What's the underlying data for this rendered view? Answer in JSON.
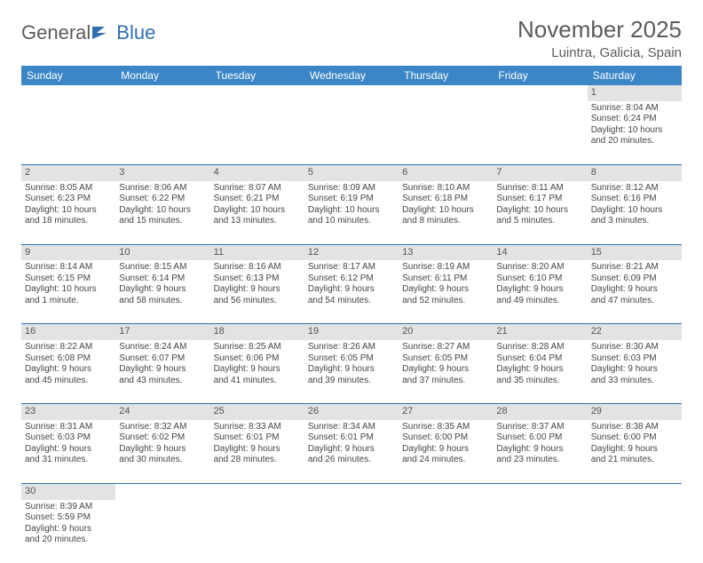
{
  "brand": {
    "part1": "General",
    "part2": "Blue"
  },
  "title": "November 2025",
  "location": "Luintra, Galicia, Spain",
  "colors": {
    "header_bg": "#3b86c6",
    "header_text": "#ffffff",
    "daynum_bg": "#e3e3e3",
    "row_border": "#2f6fb0",
    "text": "#454545",
    "title_color": "#5b5b5b",
    "logo_gray": "#5b5b5b",
    "logo_blue": "#2f6fb0"
  },
  "weekdays": [
    "Sunday",
    "Monday",
    "Tuesday",
    "Wednesday",
    "Thursday",
    "Friday",
    "Saturday"
  ],
  "weeks": [
    [
      null,
      null,
      null,
      null,
      null,
      null,
      {
        "n": "1",
        "sr": "Sunrise: 8:04 AM",
        "ss": "Sunset: 6:24 PM",
        "d1": "Daylight: 10 hours",
        "d2": "and 20 minutes."
      }
    ],
    [
      {
        "n": "2",
        "sr": "Sunrise: 8:05 AM",
        "ss": "Sunset: 6:23 PM",
        "d1": "Daylight: 10 hours",
        "d2": "and 18 minutes."
      },
      {
        "n": "3",
        "sr": "Sunrise: 8:06 AM",
        "ss": "Sunset: 6:22 PM",
        "d1": "Daylight: 10 hours",
        "d2": "and 15 minutes."
      },
      {
        "n": "4",
        "sr": "Sunrise: 8:07 AM",
        "ss": "Sunset: 6:21 PM",
        "d1": "Daylight: 10 hours",
        "d2": "and 13 minutes."
      },
      {
        "n": "5",
        "sr": "Sunrise: 8:09 AM",
        "ss": "Sunset: 6:19 PM",
        "d1": "Daylight: 10 hours",
        "d2": "and 10 minutes."
      },
      {
        "n": "6",
        "sr": "Sunrise: 8:10 AM",
        "ss": "Sunset: 6:18 PM",
        "d1": "Daylight: 10 hours",
        "d2": "and 8 minutes."
      },
      {
        "n": "7",
        "sr": "Sunrise: 8:11 AM",
        "ss": "Sunset: 6:17 PM",
        "d1": "Daylight: 10 hours",
        "d2": "and 5 minutes."
      },
      {
        "n": "8",
        "sr": "Sunrise: 8:12 AM",
        "ss": "Sunset: 6:16 PM",
        "d1": "Daylight: 10 hours",
        "d2": "and 3 minutes."
      }
    ],
    [
      {
        "n": "9",
        "sr": "Sunrise: 8:14 AM",
        "ss": "Sunset: 6:15 PM",
        "d1": "Daylight: 10 hours",
        "d2": "and 1 minute."
      },
      {
        "n": "10",
        "sr": "Sunrise: 8:15 AM",
        "ss": "Sunset: 6:14 PM",
        "d1": "Daylight: 9 hours",
        "d2": "and 58 minutes."
      },
      {
        "n": "11",
        "sr": "Sunrise: 8:16 AM",
        "ss": "Sunset: 6:13 PM",
        "d1": "Daylight: 9 hours",
        "d2": "and 56 minutes."
      },
      {
        "n": "12",
        "sr": "Sunrise: 8:17 AM",
        "ss": "Sunset: 6:12 PM",
        "d1": "Daylight: 9 hours",
        "d2": "and 54 minutes."
      },
      {
        "n": "13",
        "sr": "Sunrise: 8:19 AM",
        "ss": "Sunset: 6:11 PM",
        "d1": "Daylight: 9 hours",
        "d2": "and 52 minutes."
      },
      {
        "n": "14",
        "sr": "Sunrise: 8:20 AM",
        "ss": "Sunset: 6:10 PM",
        "d1": "Daylight: 9 hours",
        "d2": "and 49 minutes."
      },
      {
        "n": "15",
        "sr": "Sunrise: 8:21 AM",
        "ss": "Sunset: 6:09 PM",
        "d1": "Daylight: 9 hours",
        "d2": "and 47 minutes."
      }
    ],
    [
      {
        "n": "16",
        "sr": "Sunrise: 8:22 AM",
        "ss": "Sunset: 6:08 PM",
        "d1": "Daylight: 9 hours",
        "d2": "and 45 minutes."
      },
      {
        "n": "17",
        "sr": "Sunrise: 8:24 AM",
        "ss": "Sunset: 6:07 PM",
        "d1": "Daylight: 9 hours",
        "d2": "and 43 minutes."
      },
      {
        "n": "18",
        "sr": "Sunrise: 8:25 AM",
        "ss": "Sunset: 6:06 PM",
        "d1": "Daylight: 9 hours",
        "d2": "and 41 minutes."
      },
      {
        "n": "19",
        "sr": "Sunrise: 8:26 AM",
        "ss": "Sunset: 6:05 PM",
        "d1": "Daylight: 9 hours",
        "d2": "and 39 minutes."
      },
      {
        "n": "20",
        "sr": "Sunrise: 8:27 AM",
        "ss": "Sunset: 6:05 PM",
        "d1": "Daylight: 9 hours",
        "d2": "and 37 minutes."
      },
      {
        "n": "21",
        "sr": "Sunrise: 8:28 AM",
        "ss": "Sunset: 6:04 PM",
        "d1": "Daylight: 9 hours",
        "d2": "and 35 minutes."
      },
      {
        "n": "22",
        "sr": "Sunrise: 8:30 AM",
        "ss": "Sunset: 6:03 PM",
        "d1": "Daylight: 9 hours",
        "d2": "and 33 minutes."
      }
    ],
    [
      {
        "n": "23",
        "sr": "Sunrise: 8:31 AM",
        "ss": "Sunset: 6:03 PM",
        "d1": "Daylight: 9 hours",
        "d2": "and 31 minutes."
      },
      {
        "n": "24",
        "sr": "Sunrise: 8:32 AM",
        "ss": "Sunset: 6:02 PM",
        "d1": "Daylight: 9 hours",
        "d2": "and 30 minutes."
      },
      {
        "n": "25",
        "sr": "Sunrise: 8:33 AM",
        "ss": "Sunset: 6:01 PM",
        "d1": "Daylight: 9 hours",
        "d2": "and 28 minutes."
      },
      {
        "n": "26",
        "sr": "Sunrise: 8:34 AM",
        "ss": "Sunset: 6:01 PM",
        "d1": "Daylight: 9 hours",
        "d2": "and 26 minutes."
      },
      {
        "n": "27",
        "sr": "Sunrise: 8:35 AM",
        "ss": "Sunset: 6:00 PM",
        "d1": "Daylight: 9 hours",
        "d2": "and 24 minutes."
      },
      {
        "n": "28",
        "sr": "Sunrise: 8:37 AM",
        "ss": "Sunset: 6:00 PM",
        "d1": "Daylight: 9 hours",
        "d2": "and 23 minutes."
      },
      {
        "n": "29",
        "sr": "Sunrise: 8:38 AM",
        "ss": "Sunset: 6:00 PM",
        "d1": "Daylight: 9 hours",
        "d2": "and 21 minutes."
      }
    ],
    [
      {
        "n": "30",
        "sr": "Sunrise: 8:39 AM",
        "ss": "Sunset: 5:59 PM",
        "d1": "Daylight: 9 hours",
        "d2": "and 20 minutes."
      },
      null,
      null,
      null,
      null,
      null,
      null
    ]
  ]
}
